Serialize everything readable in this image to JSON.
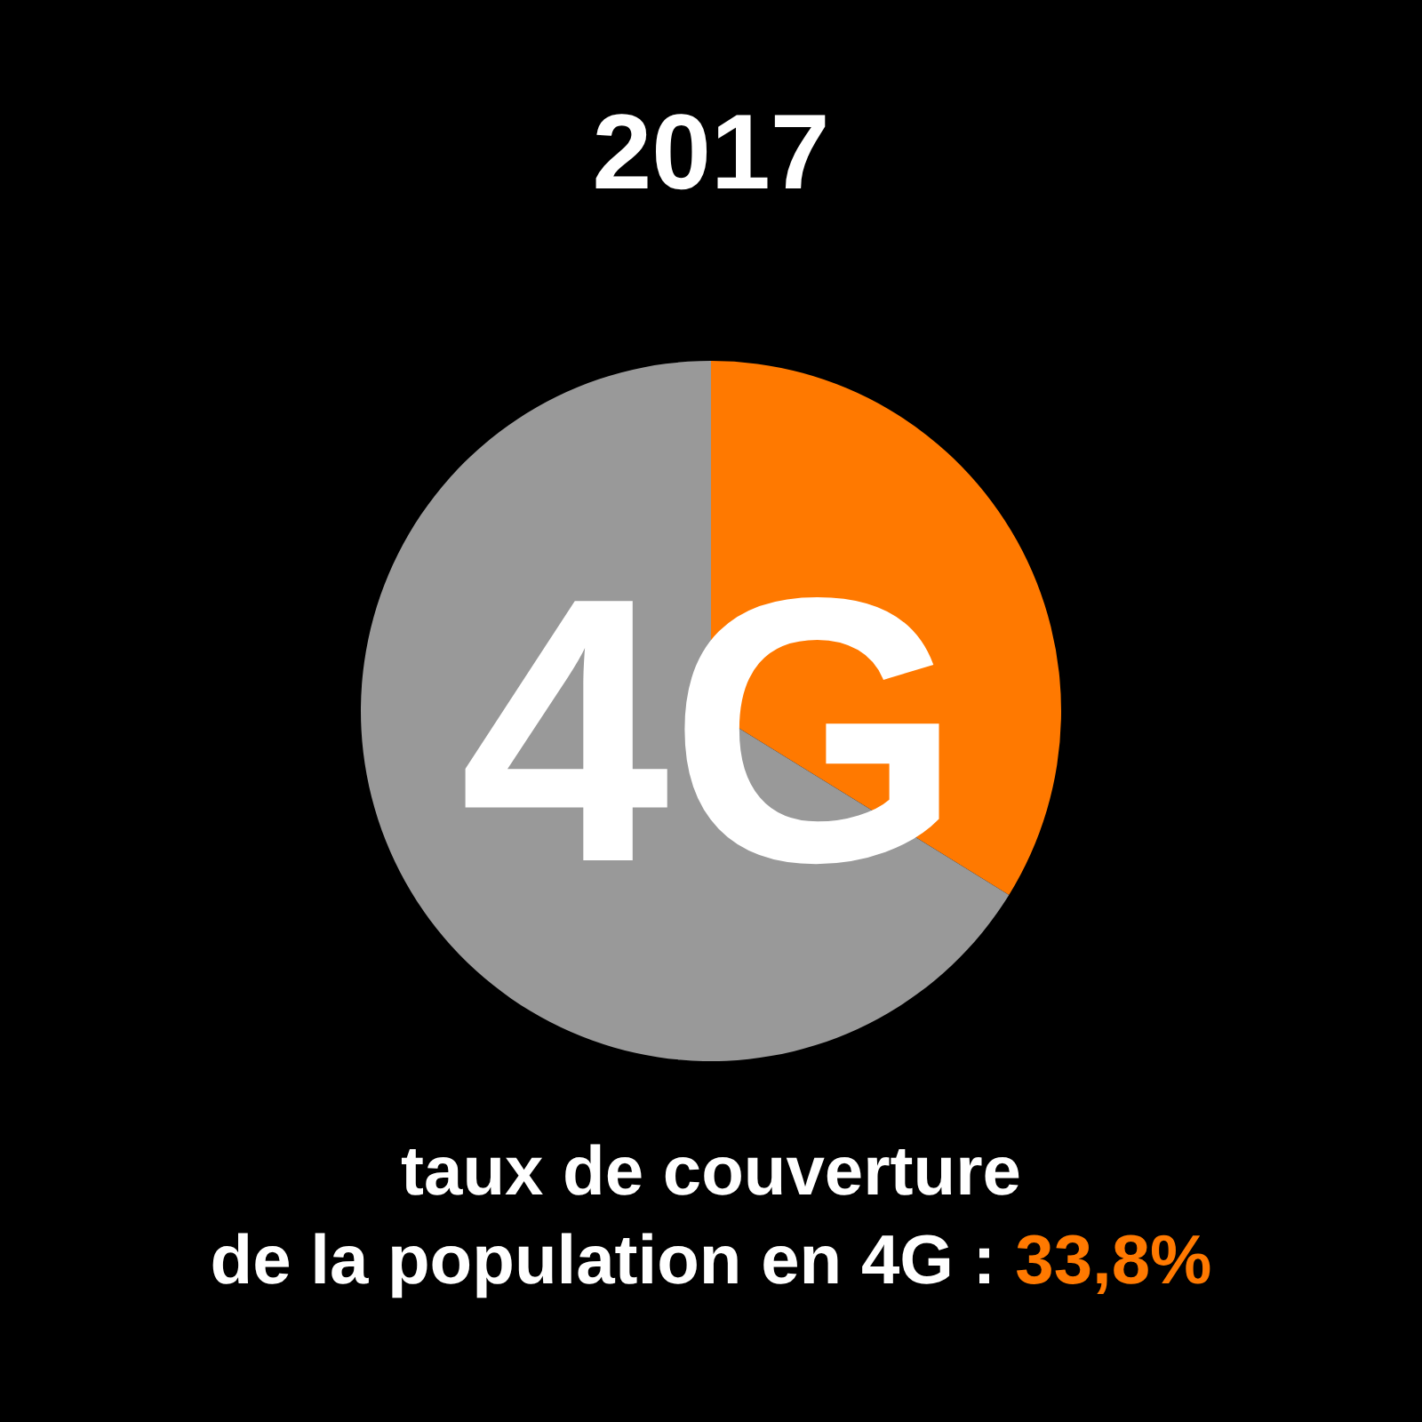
{
  "chart_data": {
    "type": "pie",
    "title": "2017",
    "categories": [
      null,
      null
    ],
    "values": [
      33.8,
      66.2
    ],
    "colors": [
      "#ff7900",
      "#999999"
    ],
    "annotations": [
      "4G",
      "taux de couverture",
      "de la population en 4G : 33,8%"
    ]
  }
}
